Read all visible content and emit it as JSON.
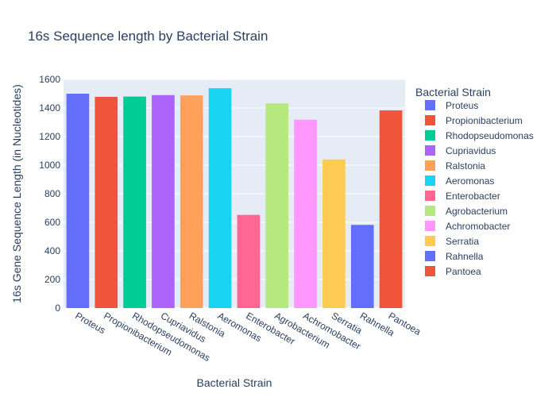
{
  "chart_data": {
    "type": "bar",
    "title": "16s Sequence length by Bacterial Strain",
    "xlabel": "Bacterial Strain",
    "ylabel": "16s Gene Sequence Length (in Nucleotides)",
    "legend_title": "Bacterial Strain",
    "legend_position": "right",
    "grid": true,
    "ylim": [
      0,
      1600
    ],
    "yticks": [
      0,
      200,
      400,
      600,
      800,
      1000,
      1200,
      1400,
      1600
    ],
    "categories": [
      "Proteus",
      "Propionibacterium",
      "Rhodopseudomonas",
      "Cupriavidus",
      "Ralstonia",
      "Aeromonas",
      "Enterobacter",
      "Agrobacterium",
      "Achromobacter",
      "Serratia",
      "Rahnella",
      "Pantoea"
    ],
    "values": [
      1500,
      1478,
      1480,
      1490,
      1488,
      1538,
      652,
      1432,
      1318,
      1040,
      582,
      1383
    ],
    "colors": [
      "#636efa",
      "#EF553B",
      "#00cc96",
      "#ab63fa",
      "#FFA15A",
      "#19d3f3",
      "#FF6692",
      "#B6E880",
      "#FF97FF",
      "#FECB52",
      "#636efa",
      "#EF553B"
    ]
  }
}
